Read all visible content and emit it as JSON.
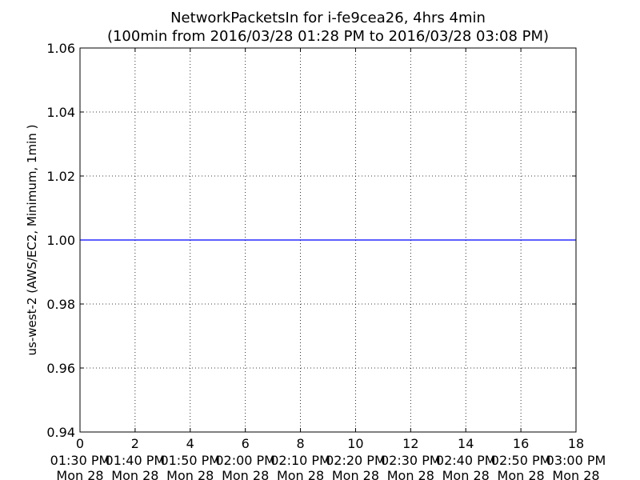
{
  "chart_data": {
    "type": "line",
    "title": "NetworkPacketsIn for i-fe9cea26, 4hrs 4min",
    "subtitle": "(100min from 2016/03/28 01:28 PM to 2016/03/28 03:08 PM)",
    "xlabel": "",
    "ylabel": "us-west-2 (AWS/EC2, Minimum, 1min )",
    "xlim": [
      0,
      18
    ],
    "ylim": [
      0.94,
      1.06
    ],
    "x_ticks": [
      0,
      2,
      4,
      6,
      8,
      10,
      12,
      14,
      16,
      18
    ],
    "x_tick_time_labels": [
      "01:30 PM",
      "01:40 PM",
      "01:50 PM",
      "02:00 PM",
      "02:10 PM",
      "02:20 PM",
      "02:30 PM",
      "02:40 PM",
      "02:50 PM",
      "03:00 PM"
    ],
    "x_tick_day_labels": [
      "Mon 28",
      "Mon 28",
      "Mon 28",
      "Mon 28",
      "Mon 28",
      "Mon 28",
      "Mon 28",
      "Mon 28",
      "Mon 28",
      "Mon 28"
    ],
    "y_ticks": [
      "0.94",
      "0.96",
      "0.98",
      "1.00",
      "1.02",
      "1.04",
      "1.06"
    ],
    "grid": true,
    "series": [
      {
        "color": "#0000ff",
        "x": [
          0,
          18
        ],
        "y": [
          1.0,
          1.0
        ]
      }
    ]
  }
}
